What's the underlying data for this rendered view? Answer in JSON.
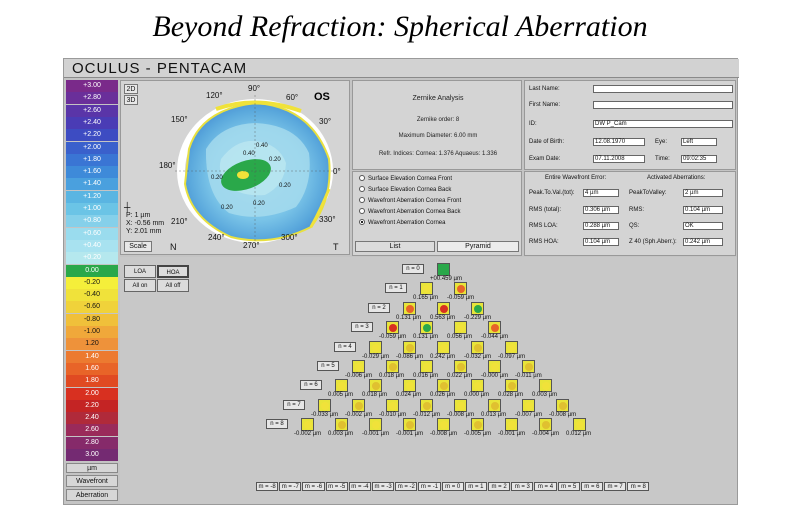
{
  "slide_title": "Beyond Refraction: Spherical Aberration",
  "app_title": "OCULUS - PENTACAM",
  "color_scale": {
    "values": [
      "+3.00",
      "+2.80",
      "+2.60",
      "+2.40",
      "+2.20",
      "+2.00",
      "+1.80",
      "+1.60",
      "+1.40",
      "+1.20",
      "+1.00",
      "+0.80",
      "+0.60",
      "+0.40",
      "+0.20",
      "0.00",
      "-0.20",
      "-0.40",
      "-0.60",
      "-0.80",
      "-1.00",
      "1.20",
      "1.40",
      "1.60",
      "1.80",
      "2.00",
      "2.20",
      "2.40",
      "2.60",
      "2.80",
      "3.00"
    ],
    "colors": [
      "#7a2a8a",
      "#6a2f9a",
      "#5a35a8",
      "#4a3cb5",
      "#3d4cc2",
      "#3a60cc",
      "#3a75d4",
      "#3e8ad9",
      "#4aa0de",
      "#5ab5e2",
      "#6bc4e6",
      "#85d0ea",
      "#9adcee",
      "#a8e2f0",
      "#b5e8ee",
      "#2aa84a",
      "#f5ef3a",
      "#f0e23a",
      "#f0d23a",
      "#f0c03a",
      "#f0a83a",
      "#ee923a",
      "#ec7a30",
      "#e86428",
      "#e04a22",
      "#d83020",
      "#c42424",
      "#b02a3a",
      "#9a2a5a",
      "#862a6a",
      "#742a72"
    ],
    "unit": "µm",
    "wavefront_label": "Wavefront",
    "aberration_label": "Aberration"
  },
  "map": {
    "btn_2d": "2D",
    "btn_3d": "3D",
    "eye": "OS",
    "p_label": "P:",
    "p_value": "1 µm",
    "x_label": "X:",
    "x_value": "-0.56 mm",
    "y_label": "Y:",
    "y_value": "2.01 mm",
    "scale_btn": "Scale",
    "n_label": "N",
    "t_label": "T",
    "axis_90": "90°",
    "axis_270": "270°",
    "axis_120": "120°",
    "axis_60": "60°",
    "axis_150": "150°",
    "axis_30": "30°",
    "axis_180": "180°",
    "axis_0": "0°",
    "axis_210": "210°",
    "axis_330": "330°",
    "axis_240": "240°",
    "axis_300": "300°",
    "contour_labels": [
      "0.40",
      "0.20",
      "0.20",
      "0.20",
      "0.20",
      "0.20",
      "0.40"
    ]
  },
  "zernike_info": {
    "title": "Zernike Analysis",
    "order": "Zernike order: 8",
    "max_diameter": "Maximum Diameter: 6.00 mm",
    "refr_indices": "Refr. Indices:  Cornea: 1.376   Aquaeus: 1.336"
  },
  "patient": {
    "last_name_label": "Last Name:",
    "last_name": "",
    "first_name_label": "First Name:",
    "first_name": "",
    "id_label": "ID:",
    "id": "DW P_Cam",
    "dob_label": "Date of Birth:",
    "dob": "12.08.1970",
    "eye_label": "Eye:",
    "eye": "Left",
    "exam_date_label": "Exam Date:",
    "exam_date": "07.11.2008",
    "time_label": "Time:",
    "time": "09:02:35"
  },
  "radios": {
    "options": [
      "Surface Elevation Cornea Front",
      "Surface Elevation Cornea Back",
      "Wavefront Aberration Cornea Front",
      "Wavefront Aberration Cornea Back",
      "Wavefront Aberration Cornea"
    ],
    "selected_index": 4,
    "tab_list": "List",
    "tab_pyramid": "Pyramid"
  },
  "wavefront_error": {
    "entire_header": "Entire Wavefront Error:",
    "activated_header": "Activated Aberrations:",
    "ptv_tot_label": "Peak.To.Val.(tot):",
    "ptv_tot": "4 µm",
    "ptv_label": "PeakToValley:",
    "ptv": "2 µm",
    "rms_total_label": "RMS (total):",
    "rms_total": "0.306 µm",
    "rms_label": "RMS:",
    "rms": "0.104 µm",
    "rms_loa_label": "RMS LOA:",
    "rms_loa": "0.288 µm",
    "qs_label": "QS:",
    "qs": "OK",
    "rms_hoa_label": "RMS HOA:",
    "rms_hoa": "0.104 µm",
    "z40_label": "Z 40 (Sph.Aberr.):",
    "z40": "0.242 µm"
  },
  "pyramid_controls": {
    "loa": "LOA",
    "hoa": "HOA",
    "all_on": "All on",
    "all_off": "All off"
  },
  "pyramid_rows": [
    {
      "n": "n = 0",
      "values": [
        "0.459 µm"
      ],
      "prefix": "+0"
    },
    {
      "n": "n = 1",
      "values": [
        "0.165 µm",
        "-0.059 µm"
      ]
    },
    {
      "n": "n = 2",
      "values": [
        "0.131 µm",
        "0.563 µm",
        "-0.229 µm"
      ]
    },
    {
      "n": "n = 3",
      "values": [
        "-0.059 µm",
        "0.131 µm",
        "0.056 µm",
        "-0.044 µm"
      ]
    },
    {
      "n": "n = 4",
      "values": [
        "-0.029 µm",
        "-0.086 µm",
        "0.242 µm",
        "-0.032 µm",
        "-0.097 µm"
      ]
    },
    {
      "n": "n = 5",
      "values": [
        "-0.006 µm",
        "0.018 µm",
        "0.016 µm",
        "0.022 µm",
        "-0.000 µm",
        "-0.011 µm"
      ]
    },
    {
      "n": "n = 6",
      "values": [
        "0.005 µm",
        "0.018 µm",
        "0.024 µm",
        "0.026 µm",
        "0.000 µm",
        "0.028 µm",
        "0.003 µm"
      ]
    },
    {
      "n": "n = 7",
      "values": [
        "-0.033 µm",
        "-0.002 µm",
        "-0.010 µm",
        "-0.012 µm",
        "-0.008 µm",
        "0.013 µm",
        "-0.007 µm",
        "-0.008 µm"
      ]
    },
    {
      "n": "n = 8",
      "values": [
        "-0.002 µm",
        "0.003 µm",
        "-0.001 µm",
        "-0.001 µm",
        "-0.008 µm",
        "-0.005 µm",
        "-0.001 µm",
        "-0.004 µm",
        "0.012 µm"
      ]
    }
  ],
  "m_labels": [
    "m = -8",
    "m = -7",
    "m = -6",
    "m = -5",
    "m = -4",
    "m = -3",
    "m = -2",
    "m = -1",
    "m = 0",
    "m = 1",
    "m = 2",
    "m = 3",
    "m = 4",
    "m = 5",
    "m = 6",
    "m = 7",
    "m = 8"
  ]
}
